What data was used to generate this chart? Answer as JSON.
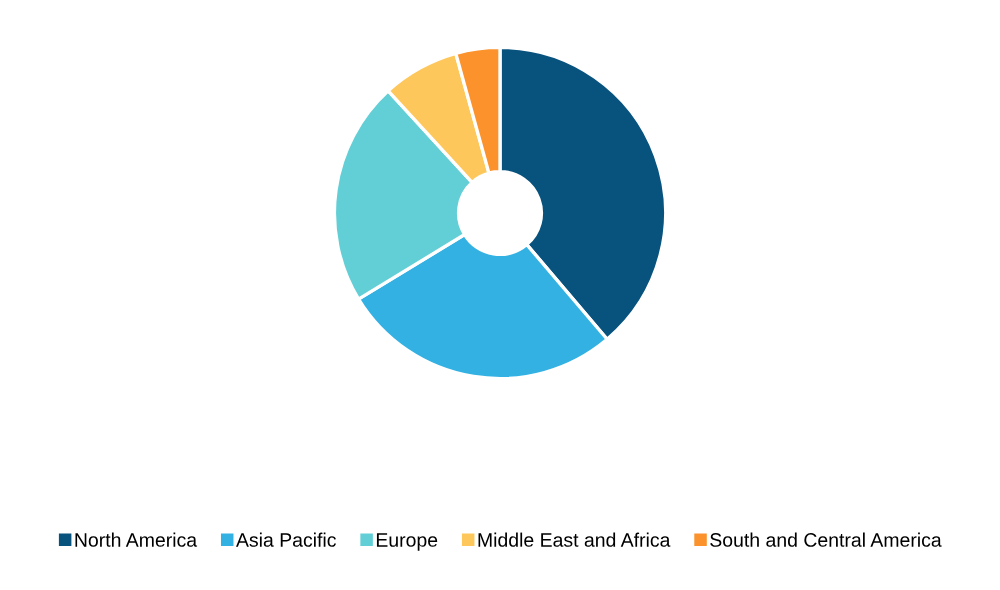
{
  "chart_data": {
    "type": "donut",
    "categories": [
      "North America",
      "Asia Pacific",
      "Europe",
      "Middle East and Africa",
      "South and Central America"
    ],
    "values": [
      38.8,
      27.5,
      21.9,
      7.5,
      4.3
    ],
    "colors": [
      "#08527e",
      "#33b1e3",
      "#62cfd6",
      "#fec75c",
      "#fb922c"
    ],
    "legend": "bottom"
  }
}
